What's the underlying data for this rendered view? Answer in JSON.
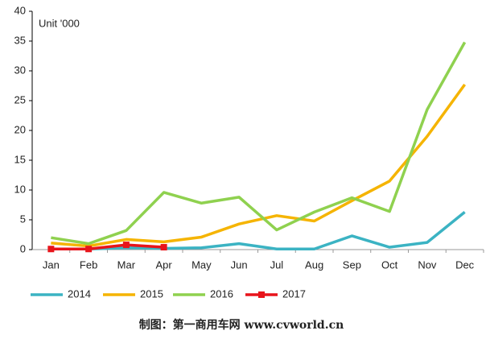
{
  "chart_data": {
    "type": "line",
    "annotation": "Unit '000",
    "source": "制图：第一商用车网 www.cvworld.cn",
    "categories": [
      "Jan",
      "Feb",
      "Mar",
      "Apr",
      "May",
      "Jun",
      "Jul",
      "Aug",
      "Sep",
      "Oct",
      "Nov",
      "Dec"
    ],
    "series": [
      {
        "name": "2014",
        "color": "#3bb3c3",
        "values": [
          0.1,
          0.1,
          0.3,
          0.2,
          0.3,
          1.0,
          0.1,
          0.1,
          2.3,
          0.4,
          1.2,
          6.3
        ]
      },
      {
        "name": "2015",
        "color": "#f5b400",
        "values": [
          1.1,
          0.6,
          1.7,
          1.3,
          2.1,
          4.3,
          5.7,
          4.8,
          8.2,
          11.5,
          19,
          27.7
        ]
      },
      {
        "name": "2016",
        "color": "#8fd14f",
        "values": [
          2.0,
          1.0,
          3.2,
          9.6,
          7.8,
          8.8,
          3.3,
          6.3,
          8.7,
          6.4,
          23.5,
          34.8
        ]
      },
      {
        "name": "2017",
        "color": "#e8141b",
        "marker": "square",
        "values": [
          0.1,
          0.1,
          0.8,
          0.4,
          null,
          null,
          null,
          null,
          null,
          null,
          null,
          null
        ]
      }
    ],
    "ylim": [
      0,
      40
    ],
    "yticks": [
      0,
      5,
      10,
      15,
      20,
      25,
      30,
      35,
      40
    ],
    "grid": false
  }
}
